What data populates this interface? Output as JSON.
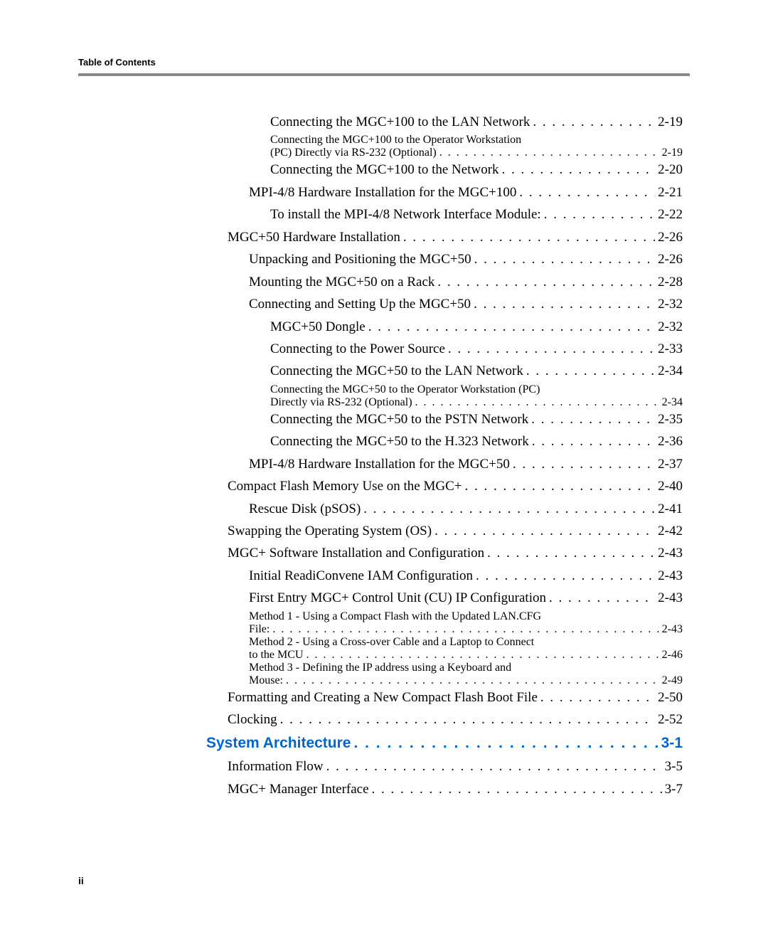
{
  "header": "Table of Contents",
  "page_number": "ii",
  "colors": {
    "divider": "#888888",
    "section_link": "#0066cc",
    "text": "#000000",
    "background": "#ffffff"
  },
  "typography": {
    "body_font": "Times New Roman",
    "header_font": "Arial",
    "body_size_pt": 14,
    "header_size_pt": 10,
    "section_size_pt": 16
  },
  "entries": [
    {
      "label": "Connecting the MGC+100 to the LAN Network",
      "page": "2-19",
      "indent": 3,
      "type": "normal"
    },
    {
      "label": "Connecting the MGC+100 to the Operator Workstation",
      "label2": "(PC) Directly via RS-232 (Optional)",
      "page": "2-19",
      "indent": 3,
      "type": "wrap"
    },
    {
      "label": "Connecting the MGC+100 to the Network",
      "page": "2-20",
      "indent": 3,
      "type": "normal"
    },
    {
      "label": "MPI-4/8 Hardware Installation for the MGC+100",
      "page": "2-21",
      "indent": 2,
      "type": "normal"
    },
    {
      "label": "To install the MPI-4/8 Network Interface Module:",
      "page": "2-22",
      "indent": 3,
      "type": "normal"
    },
    {
      "label": "MGC+50 Hardware Installation",
      "page": "2-26",
      "indent": 1,
      "type": "normal"
    },
    {
      "label": "Unpacking and Positioning the MGC+50",
      "page": "2-26",
      "indent": 2,
      "type": "normal"
    },
    {
      "label": "Mounting the MGC+50 on a Rack",
      "page": "2-28",
      "indent": 2,
      "type": "normal"
    },
    {
      "label": "Connecting and Setting Up the MGC+50",
      "page": "2-32",
      "indent": 2,
      "type": "normal"
    },
    {
      "label": "MGC+50 Dongle",
      "page": "2-32",
      "indent": 3,
      "type": "normal"
    },
    {
      "label": "Connecting to the Power Source",
      "page": "2-33",
      "indent": 3,
      "type": "normal"
    },
    {
      "label": "Connecting the MGC+50 to the LAN Network",
      "page": "2-34",
      "indent": 3,
      "type": "normal"
    },
    {
      "label": "Connecting the MGC+50 to the Operator Workstation (PC)",
      "label2": "Directly via RS-232 (Optional)",
      "page": "2-34",
      "indent": 3,
      "type": "wrap"
    },
    {
      "label": "Connecting the MGC+50 to the PSTN Network",
      "page": "2-35",
      "indent": 3,
      "type": "normal"
    },
    {
      "label": "Connecting the MGC+50 to the H.323 Network",
      "page": "2-36",
      "indent": 3,
      "type": "normal"
    },
    {
      "label": "MPI-4/8 Hardware Installation for the MGC+50",
      "page": "2-37",
      "indent": 2,
      "type": "normal"
    },
    {
      "label": "Compact Flash Memory Use on the MGC+",
      "page": "2-40",
      "indent": 1,
      "type": "normal"
    },
    {
      "label": "Rescue Disk (pSOS)",
      "page": "2-41",
      "indent": 2,
      "type": "normal"
    },
    {
      "label": "Swapping the Operating System (OS)",
      "page": "2-42",
      "indent": 1,
      "type": "normal"
    },
    {
      "label": "MGC+ Software Installation and Configuration",
      "page": "2-43",
      "indent": 1,
      "type": "normal"
    },
    {
      "label": "Initial ReadiConvene IAM Configuration",
      "page": "2-43",
      "indent": 2,
      "type": "normal"
    },
    {
      "label": "First Entry MGC+ Control Unit (CU) IP Configuration",
      "page": "2-43",
      "indent": 2,
      "type": "normal"
    },
    {
      "label": "Method 1 - Using a Compact Flash with the Updated LAN.CFG",
      "label2": "File:",
      "page": "2-43",
      "indent": 2,
      "type": "wrap"
    },
    {
      "label": "Method 2 - Using a Cross-over Cable and a Laptop to Connect",
      "label2": "to the MCU",
      "page": "2-46",
      "indent": 2,
      "type": "wrap"
    },
    {
      "label": "Method 3 - Defining the IP address using a Keyboard and",
      "label2": "Mouse:",
      "page": "2-49",
      "indent": 2,
      "type": "wrap"
    },
    {
      "label": "Formatting and Creating a New Compact Flash Boot File",
      "page": "2-50",
      "indent": 1,
      "type": "normal"
    },
    {
      "label": "Clocking",
      "page": "2-52",
      "indent": 1,
      "type": "normal"
    },
    {
      "label": "System Architecture",
      "page": "3-1",
      "indent": 0,
      "type": "section"
    },
    {
      "label": "Information Flow",
      "page": "3-5",
      "indent": 1,
      "type": "normal"
    },
    {
      "label": "MGC+ Manager Interface",
      "page": "3-7",
      "indent": 1,
      "type": "normal"
    }
  ]
}
